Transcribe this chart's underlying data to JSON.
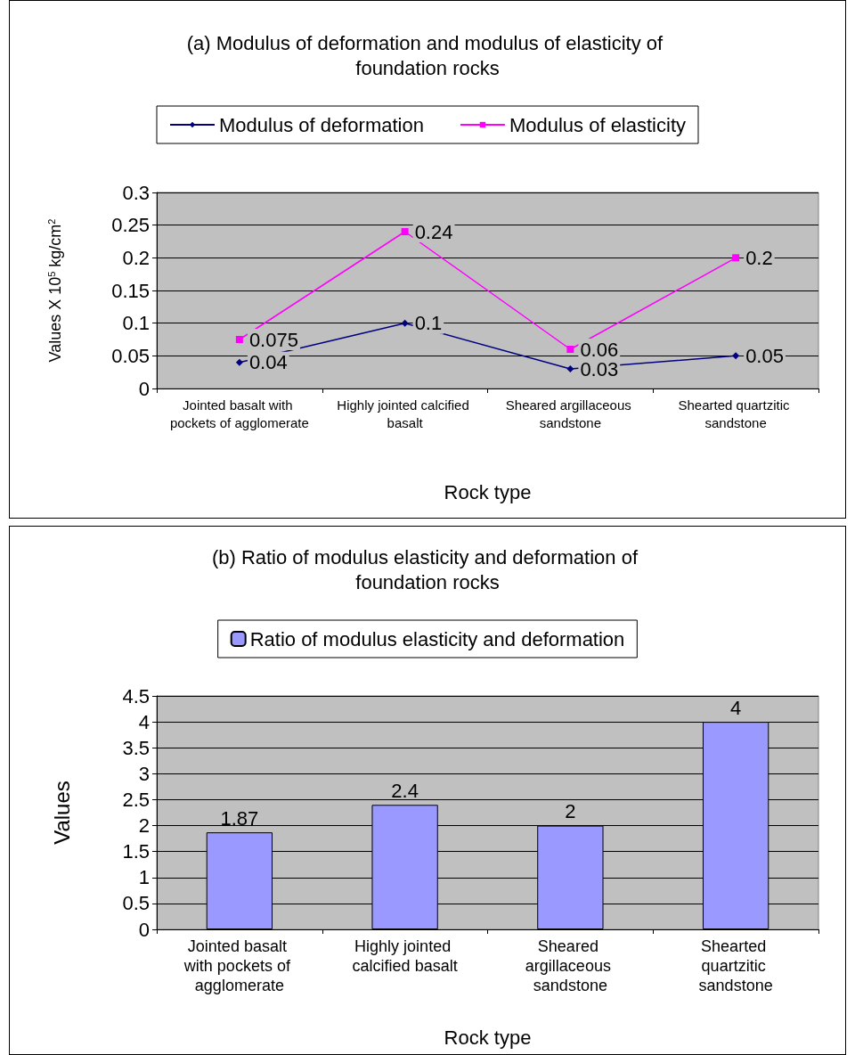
{
  "chart_data": [
    {
      "type": "line",
      "title": "(a) Modulus of deformation and modulus of elasticity of foundation rocks",
      "xlabel": "Rock type",
      "ylabel": "Values X 10$^{5}$ kg/cm$^{2}$",
      "categories": [
        "Jointed basalt with pockets of agglomerate",
        "Highly jointed calcified basalt",
        "Sheared argillaceous sandstone",
        "Shearted quartzitic sandstone"
      ],
      "series": [
        {
          "name": "Modulus of deformation",
          "color": "#000080",
          "marker": "diamond",
          "values": [
            0.04,
            0.1,
            0.03,
            0.05
          ]
        },
        {
          "name": "Modulus of elasticity",
          "color": "#ff00ff",
          "marker": "square",
          "values": [
            0.075,
            0.24,
            0.06,
            0.2
          ]
        }
      ],
      "ylim": [
        0,
        0.3
      ],
      "yticks": [
        0,
        0.05,
        0.1,
        0.15,
        0.2,
        0.25,
        0.3
      ],
      "grid": "y",
      "legend": "top",
      "data_labels": true
    },
    {
      "type": "bar",
      "title": "(b) Ratio of modulus elasticity and deformation of foundation rocks",
      "xlabel": "Rock type",
      "ylabel": "Values",
      "categories": [
        "Jointed basalt with pockets of agglomerate",
        "Highly jointed calcified basalt",
        "Sheared argillaceous sandstone",
        "Shearted quartzitic sandstone"
      ],
      "series": [
        {
          "name": "Ratio of modulus elasticity and deformation",
          "color": "#9999ff",
          "values": [
            1.87,
            2.4,
            2,
            4
          ]
        }
      ],
      "ylim": [
        0,
        4.5
      ],
      "yticks": [
        0,
        0.5,
        1,
        1.5,
        2,
        2.5,
        3,
        3.5,
        4,
        4.5
      ],
      "grid": "y",
      "legend": "top",
      "data_labels": true
    }
  ]
}
